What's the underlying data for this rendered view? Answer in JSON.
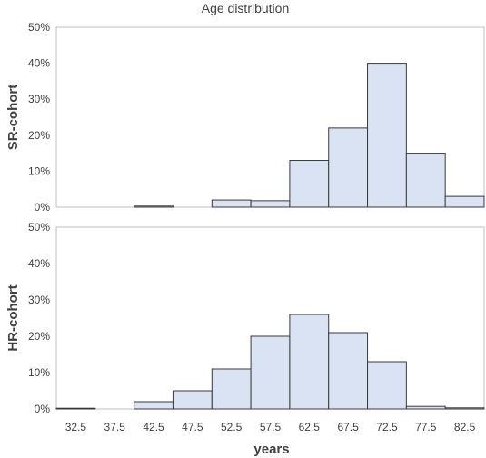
{
  "chart_data": {
    "type": "bar",
    "title": "Age distribution",
    "xlabel": "years",
    "categories": [
      "32.5",
      "37.5",
      "42.5",
      "47.5",
      "52.5",
      "57.5",
      "62.5",
      "67.5",
      "72.5",
      "77.5",
      "82.5"
    ],
    "ylim": [
      0,
      50
    ],
    "y_tick_labels": [
      "0%",
      "10%",
      "20%",
      "30%",
      "40%",
      "50%"
    ],
    "panels": [
      {
        "ylabel": "SR-cohort",
        "values": [
          0,
          0,
          0.3,
          0,
          2,
          1.8,
          13,
          22,
          40,
          15,
          3
        ]
      },
      {
        "ylabel": "HR-cohort",
        "values": [
          0.2,
          0,
          2,
          5,
          11,
          20,
          26,
          21,
          13,
          0.7,
          0.3
        ]
      }
    ]
  }
}
